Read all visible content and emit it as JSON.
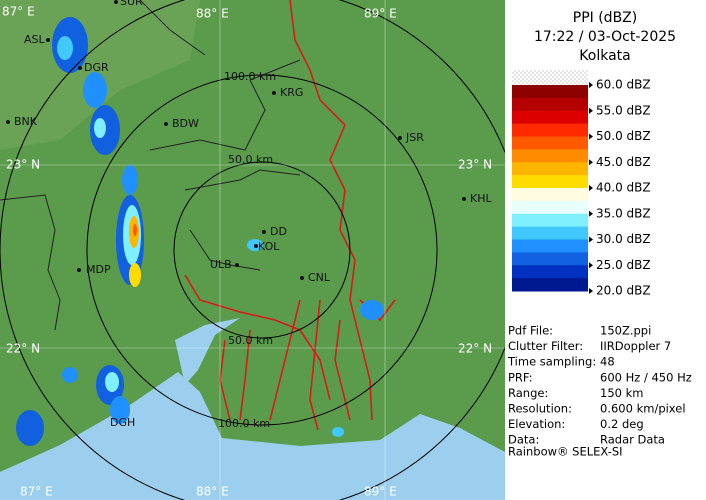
{
  "header": {
    "title": "PPI (dBZ)",
    "time": "17:22 / 03-Oct-2025",
    "site": "Kolkata"
  },
  "legend": {
    "labels": [
      "60.0 dBZ",
      "55.0 dBZ",
      "50.0 dBZ",
      "45.0 dBZ",
      "40.0 dBZ",
      "35.0 dBZ",
      "30.0 dBZ",
      "25.0 dBZ",
      "20.0 dBZ"
    ],
    "colors": [
      "#8c0000",
      "#b40000",
      "#dc0000",
      "#ff2a00",
      "#ff5a00",
      "#ff8c00",
      "#ffb400",
      "#ffdc00",
      "#fffbe0",
      "#e8ffff",
      "#80f0ff",
      "#40c8ff",
      "#2090ff",
      "#1060e0",
      "#0030c0",
      "#001890"
    ]
  },
  "info": [
    [
      "Pdf File:",
      "150Z.ppi"
    ],
    [
      "Clutter Filter:",
      "IIRDoppler 7"
    ],
    [
      "Time sampling:",
      "48"
    ],
    [
      "PRF:",
      "600 Hz / 450 Hz"
    ],
    [
      "Range:",
      "150 km"
    ],
    [
      "Resolution:",
      "0.600 km/pixel"
    ],
    [
      "Elevation:",
      "0.2 deg"
    ],
    [
      "Data:",
      "Radar Data"
    ]
  ],
  "footer": "Rainbow® SELEX-SI",
  "map": {
    "grid_labels": [
      "87° E",
      "88° E",
      "89° E",
      "23° N",
      "22° N",
      "23° N",
      "22° N",
      "87° E",
      "88° E",
      "89° E"
    ],
    "towns": [
      "SUR",
      "ASL",
      "DGR",
      "BNK",
      "BDW",
      "KRG",
      "JSR",
      "KHL",
      "MDP",
      "DD",
      "KOL",
      "ULB",
      "CNL",
      "DGH"
    ],
    "ranges": [
      "100.0 km",
      "50.0 km",
      "50.0 km",
      "100.0 km"
    ]
  }
}
